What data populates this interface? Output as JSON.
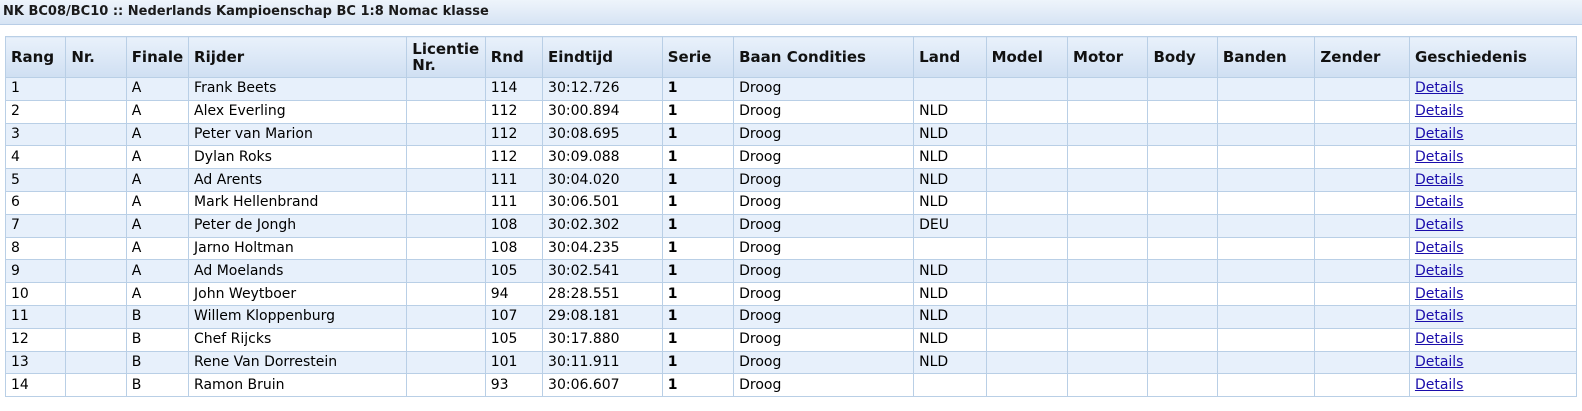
{
  "page_title": "NK BC08/BC10 :: Nederlands Kampioenschap BC 1:8 Nomac klasse",
  "columns": [
    "Rang",
    "Nr.",
    "Finale",
    "Rijder",
    "Licentie Nr.",
    "Rnd",
    "Eindtijd",
    "Serie",
    "Baan Condities",
    "Land",
    "Model",
    "Motor",
    "Body",
    "Banden",
    "Zender",
    "Geschiedenis"
  ],
  "rows": [
    {
      "rang": "1",
      "nr": "",
      "finale": "A",
      "rijder": "Frank Beets",
      "licentie": "",
      "rnd": "114",
      "eindtijd": "30:12.726",
      "serie": "1",
      "baan": "Droog",
      "land": "",
      "model": "",
      "motor": "",
      "body": "",
      "banden": "",
      "zender": "",
      "link": "Details"
    },
    {
      "rang": "2",
      "nr": "",
      "finale": "A",
      "rijder": "Alex Everling",
      "licentie": "",
      "rnd": "112",
      "eindtijd": "30:00.894",
      "serie": "1",
      "baan": "Droog",
      "land": "NLD",
      "model": "",
      "motor": "",
      "body": "",
      "banden": "",
      "zender": "",
      "link": "Details"
    },
    {
      "rang": "3",
      "nr": "",
      "finale": "A",
      "rijder": "Peter van Marion",
      "licentie": "",
      "rnd": "112",
      "eindtijd": "30:08.695",
      "serie": "1",
      "baan": "Droog",
      "land": "NLD",
      "model": "",
      "motor": "",
      "body": "",
      "banden": "",
      "zender": "",
      "link": "Details"
    },
    {
      "rang": "4",
      "nr": "",
      "finale": "A",
      "rijder": "Dylan Roks",
      "licentie": "",
      "rnd": "112",
      "eindtijd": "30:09.088",
      "serie": "1",
      "baan": "Droog",
      "land": "NLD",
      "model": "",
      "motor": "",
      "body": "",
      "banden": "",
      "zender": "",
      "link": "Details"
    },
    {
      "rang": "5",
      "nr": "",
      "finale": "A",
      "rijder": "Ad Arents",
      "licentie": "",
      "rnd": "111",
      "eindtijd": "30:04.020",
      "serie": "1",
      "baan": "Droog",
      "land": "NLD",
      "model": "",
      "motor": "",
      "body": "",
      "banden": "",
      "zender": "",
      "link": "Details"
    },
    {
      "rang": "6",
      "nr": "",
      "finale": "A",
      "rijder": "Mark Hellenbrand",
      "licentie": "",
      "rnd": "111",
      "eindtijd": "30:06.501",
      "serie": "1",
      "baan": "Droog",
      "land": "NLD",
      "model": "",
      "motor": "",
      "body": "",
      "banden": "",
      "zender": "",
      "link": "Details"
    },
    {
      "rang": "7",
      "nr": "",
      "finale": "A",
      "rijder": "Peter de Jongh",
      "licentie": "",
      "rnd": "108",
      "eindtijd": "30:02.302",
      "serie": "1",
      "baan": "Droog",
      "land": "DEU",
      "model": "",
      "motor": "",
      "body": "",
      "banden": "",
      "zender": "",
      "link": "Details"
    },
    {
      "rang": "8",
      "nr": "",
      "finale": "A",
      "rijder": "Jarno Holtman",
      "licentie": "",
      "rnd": "108",
      "eindtijd": "30:04.235",
      "serie": "1",
      "baan": "Droog",
      "land": "",
      "model": "",
      "motor": "",
      "body": "",
      "banden": "",
      "zender": "",
      "link": "Details"
    },
    {
      "rang": "9",
      "nr": "",
      "finale": "A",
      "rijder": "Ad Moelands",
      "licentie": "",
      "rnd": "105",
      "eindtijd": "30:02.541",
      "serie": "1",
      "baan": "Droog",
      "land": "NLD",
      "model": "",
      "motor": "",
      "body": "",
      "banden": "",
      "zender": "",
      "link": "Details"
    },
    {
      "rang": "10",
      "nr": "",
      "finale": "A",
      "rijder": "John Weytboer",
      "licentie": "",
      "rnd": "94",
      "eindtijd": "28:28.551",
      "serie": "1",
      "baan": "Droog",
      "land": "NLD",
      "model": "",
      "motor": "",
      "body": "",
      "banden": "",
      "zender": "",
      "link": "Details"
    },
    {
      "rang": "11",
      "nr": "",
      "finale": "B",
      "rijder": "Willem Kloppenburg",
      "licentie": "",
      "rnd": "107",
      "eindtijd": "29:08.181",
      "serie": "1",
      "baan": "Droog",
      "land": "NLD",
      "model": "",
      "motor": "",
      "body": "",
      "banden": "",
      "zender": "",
      "link": "Details"
    },
    {
      "rang": "12",
      "nr": "",
      "finale": "B",
      "rijder": "Chef Rijcks",
      "licentie": "",
      "rnd": "105",
      "eindtijd": "30:17.880",
      "serie": "1",
      "baan": "Droog",
      "land": "NLD",
      "model": "",
      "motor": "",
      "body": "",
      "banden": "",
      "zender": "",
      "link": "Details"
    },
    {
      "rang": "13",
      "nr": "",
      "finale": "B",
      "rijder": "Rene Van Dorrestein",
      "licentie": "",
      "rnd": "101",
      "eindtijd": "30:11.911",
      "serie": "1",
      "baan": "Droog",
      "land": "NLD",
      "model": "",
      "motor": "",
      "body": "",
      "banden": "",
      "zender": "",
      "link": "Details"
    },
    {
      "rang": "14",
      "nr": "",
      "finale": "B",
      "rijder": "Ramon Bruin",
      "licentie": "",
      "rnd": "93",
      "eindtijd": "30:06.607",
      "serie": "1",
      "baan": "Droog",
      "land": "",
      "model": "",
      "motor": "",
      "body": "",
      "banden": "",
      "zender": "",
      "link": "Details"
    }
  ]
}
